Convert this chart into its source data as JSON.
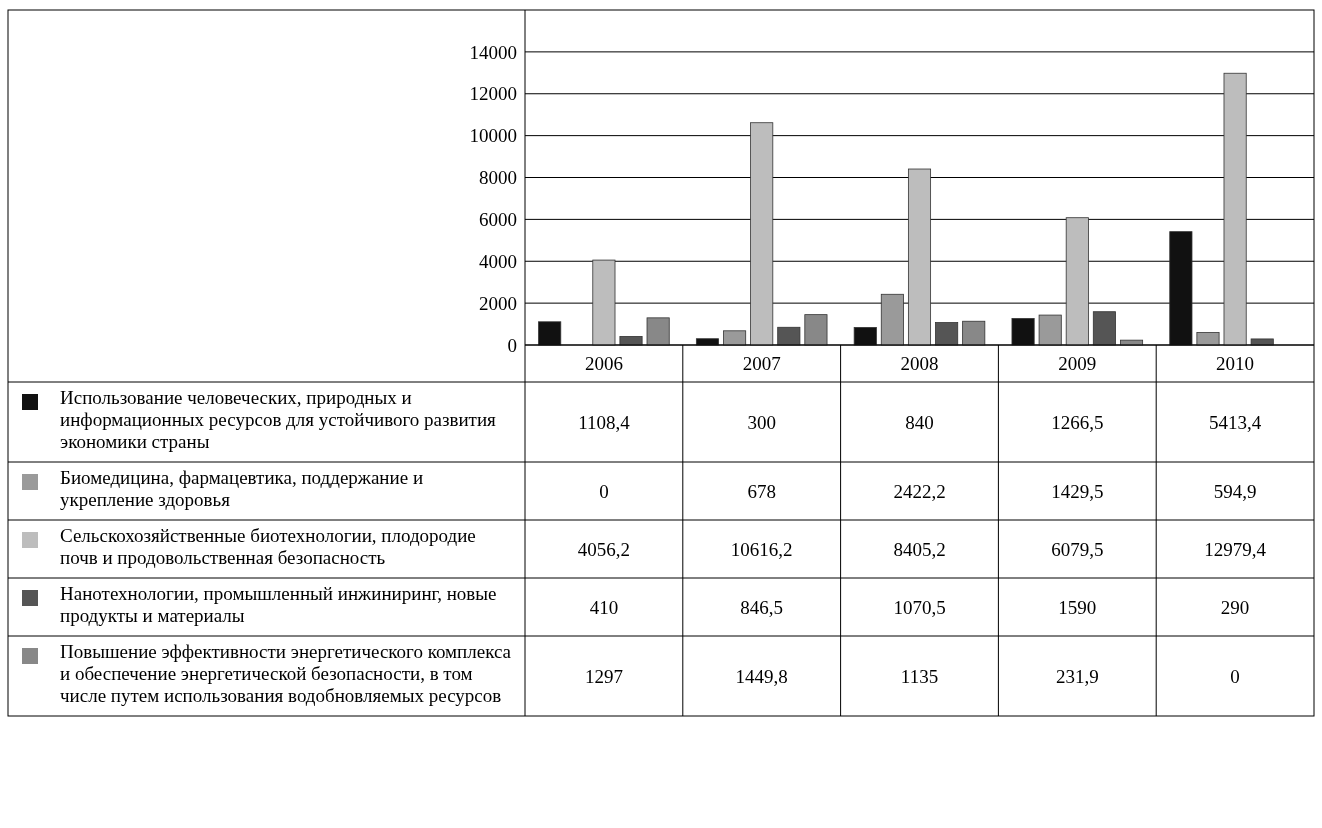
{
  "chart_data": {
    "type": "bar",
    "categories": [
      "2006",
      "2007",
      "2008",
      "2009",
      "2010"
    ],
    "ylim": [
      0,
      16000
    ],
    "yticks": [
      0,
      2000,
      4000,
      6000,
      8000,
      10000,
      12000,
      14000
    ],
    "grid": "y",
    "legend": "bottom",
    "series": [
      {
        "name": "Использование человеческих, природных и информационных ресурсов для устойчивого развития экономики страны",
        "color": "#111111",
        "values": [
          1108.4,
          300,
          840,
          1266.5,
          5413.4
        ],
        "value_labels": [
          "1108,4",
          "300",
          "840",
          "1266,5",
          "5413,4"
        ]
      },
      {
        "name": "Биомедицина, фармацевтика, поддержание и укрепление здоровья",
        "color": "#9a9a9a",
        "values": [
          0,
          678,
          2422.2,
          1429.5,
          594.9
        ],
        "value_labels": [
          "0",
          "678",
          "2422,2",
          "1429,5",
          "594,9"
        ]
      },
      {
        "name": "Сельскохозяйственные биотехнологии, плодородие почв и продовольственная безопасность",
        "color": "#bdbdbd",
        "values": [
          4056.2,
          10616.2,
          8405.2,
          6079.5,
          12979.4
        ],
        "value_labels": [
          "4056,2",
          "10616,2",
          "8405,2",
          "6079,5",
          "12979,4"
        ]
      },
      {
        "name": "Нанотехнологии, промышленный инжиниринг, новые продукты и материалы",
        "color": "#555555",
        "values": [
          410,
          846.5,
          1070.5,
          1590,
          290
        ],
        "value_labels": [
          "410",
          "846,5",
          "1070,5",
          "1590",
          "290"
        ]
      },
      {
        "name": "Повышение эффективности энергетического комплекса и обеспечение энергетической безопасности, в том числе путем использования водобновляемых ресурсов",
        "color": "#888888",
        "values": [
          1297,
          1449.8,
          1135,
          231.9,
          0
        ],
        "value_labels": [
          "1297",
          "1449,8",
          "1135",
          "231,9",
          "0"
        ]
      }
    ]
  }
}
